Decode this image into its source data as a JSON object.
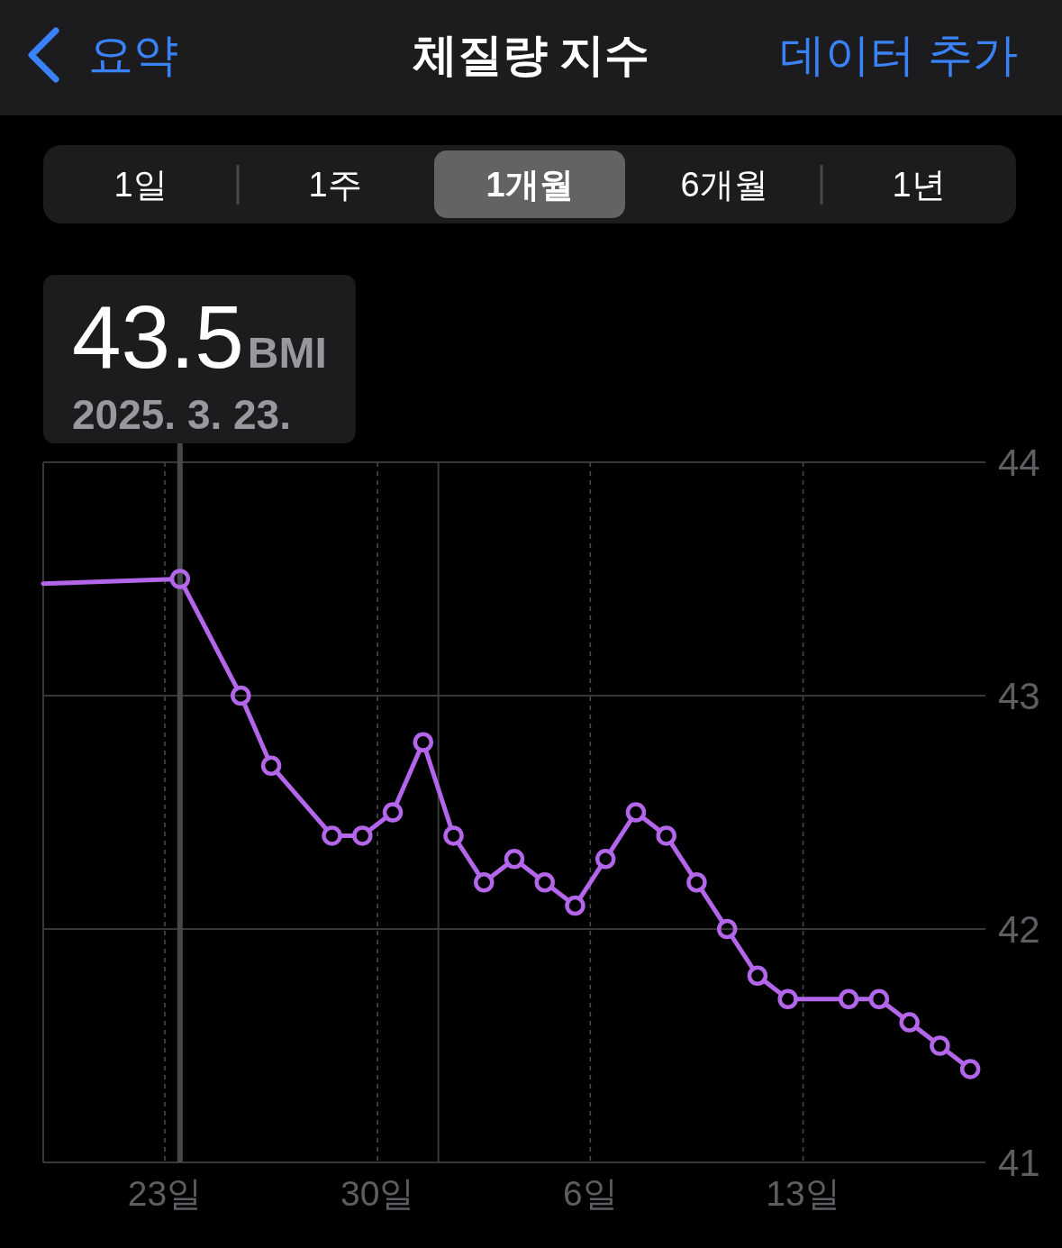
{
  "chart_data": {
    "type": "line",
    "title": "체질량 지수",
    "annotations": [
      "요약",
      "데이터 추가",
      "1일",
      "1주",
      "1개월",
      "6개월",
      "1년",
      "43.5",
      "BMI"
    ],
    "xlim": [
      "2025-03-19",
      "2025-04-19"
    ],
    "xticks": [
      {
        "value": "2025-03-23",
        "label": "23일"
      },
      {
        "value": "2025-03-30",
        "label": "30일"
      },
      {
        "value": "2025-04-06",
        "label": "6일"
      },
      {
        "value": "2025-04-13",
        "label": "13일"
      }
    ],
    "ylim": [
      41,
      44
    ],
    "yticks": [
      41,
      42,
      43,
      44
    ],
    "grid": true,
    "marker": "circle",
    "line_style": "solid",
    "ref_lines": [
      {
        "axis": "x",
        "value": "2025-03-23T12:00",
        "label": "2025. 3. 23.",
        "color": "#48484a"
      },
      {
        "axis": "x",
        "value": "2025-04-01",
        "color": "#3a3a3c"
      }
    ],
    "series": [
      {
        "color": "#b366ea",
        "x": [
          "2025-03-23T12:00",
          "2025-03-25T12:00",
          "2025-03-26T12:00",
          "2025-03-28T12:00",
          "2025-03-29T12:00",
          "2025-03-30T12:00",
          "2025-03-31T12:00",
          "2025-04-01T12:00",
          "2025-04-02T12:00",
          "2025-04-03T12:00",
          "2025-04-04T12:00",
          "2025-04-05T12:00",
          "2025-04-06T12:00",
          "2025-04-07T12:00",
          "2025-04-08T12:00",
          "2025-04-09T12:00",
          "2025-04-10T12:00",
          "2025-04-11T12:00",
          "2025-04-12T12:00",
          "2025-04-14T12:00",
          "2025-04-15T12:00",
          "2025-04-16T12:00",
          "2025-04-17T12:00",
          "2025-04-18T12:00"
        ],
        "values": [
          43.5,
          43.0,
          42.7,
          42.4,
          42.4,
          42.5,
          42.8,
          42.4,
          42.2,
          42.3,
          42.2,
          42.1,
          42.3,
          42.5,
          42.4,
          42.2,
          42.0,
          41.8,
          41.7,
          41.7,
          41.7,
          41.6,
          41.5,
          41.4
        ]
      },
      {
        "color": "#b366ea",
        "marker": "none",
        "x": [
          "2025-03-19",
          "2025-03-23T12:00"
        ],
        "values": [
          43.48,
          43.5
        ]
      }
    ]
  }
}
